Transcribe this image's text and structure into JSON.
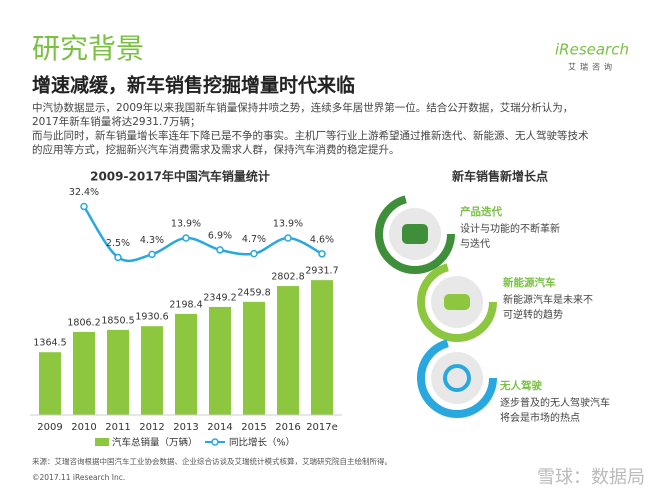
{
  "header": {
    "title": "研究背景",
    "logo": "iResearch",
    "logo_sub": "艾瑞咨询",
    "subtitle": "增速减缓，新车销售挖掘增量时代来临",
    "paragraph": [
      "中汽协数据显示，2009年以来我国新车销量保持井喷之势，连续多年居世界第一位。结合公开数据，艾瑞分析认为，",
      "2017年新车销量将达2931.7万辆；",
      "而与此同时，新车销量增长率连年下降已是不争的事实。主机厂等行业上游希望通过推新迭代、新能源、无人驾驶等技术",
      "的应用等方式，挖掘新兴汽车消费需求及需求人群，保持汽车消费的稳定提升。"
    ]
  },
  "chart_data": {
    "type": "bar-line",
    "title": "2009-2017年中国汽车销量统计",
    "categories": [
      "2009",
      "2010",
      "2011",
      "2012",
      "2013",
      "2014",
      "2015",
      "2016",
      "2017e"
    ],
    "ylim": [
      0,
      5000
    ],
    "y2lim": [
      -90,
      45
    ],
    "series": [
      {
        "name": "汽车总销量（万辆）",
        "color": "#8dc63f",
        "values": [
          1364.5,
          1806.2,
          1850.5,
          1930.6,
          2198.4,
          2349.2,
          2459.8,
          2802.8,
          2931.7
        ]
      },
      {
        "name": "同比增长（%）",
        "color": "#29a8e0",
        "axis": "y2",
        "values": [
          null,
          32.4,
          2.5,
          4.3,
          13.9,
          6.9,
          4.7,
          13.9,
          4.6
        ],
        "value_labels": [
          null,
          "32.4%",
          "2.5%",
          "4.3%",
          "13.9%",
          "6.9%",
          "4.7%",
          "13.9%",
          "4.6%"
        ]
      }
    ]
  },
  "growth": {
    "title": "新车销售新增长点",
    "items": [
      {
        "title": "产品迭代",
        "lines": [
          "设计与功能的不断革新",
          "与迭代"
        ]
      },
      {
        "title": "新能源汽车",
        "lines": [
          "新能源汽车是未来不",
          "可逆转的趋势"
        ]
      },
      {
        "title": "无人驾驶",
        "lines": [
          "逐步普及的无人驾驶汽车",
          "将会是市场的热点"
        ]
      }
    ]
  },
  "footer": {
    "source": "来源：艾瑞咨询根据中国汽车工业协会数据、企业综合访谈及艾瑞统计模式核算，艾瑞研究院自主绘制所得。",
    "copyright": "©2017.11 iResearch Inc.",
    "watermark": "雪球：数据局"
  }
}
